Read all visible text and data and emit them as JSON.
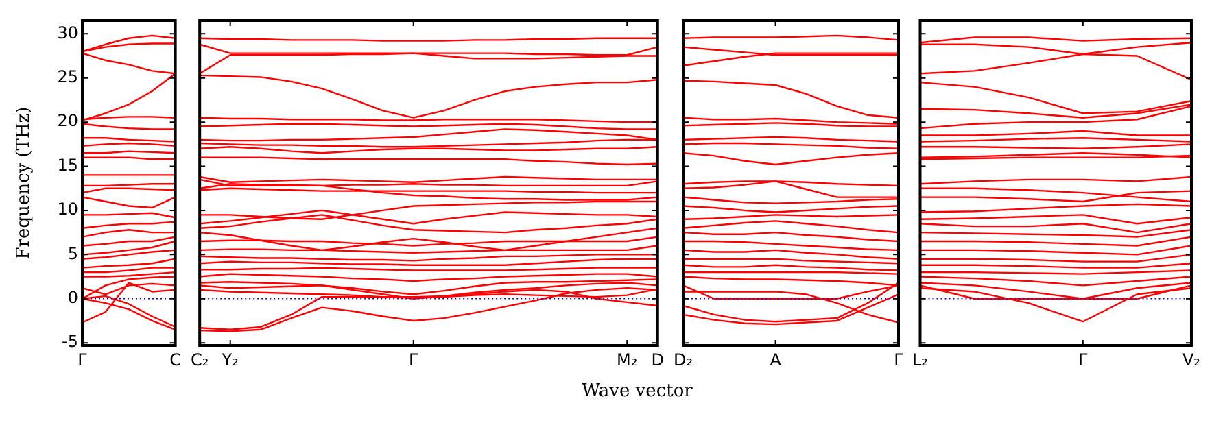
{
  "chart_data": [
    {
      "type": "line",
      "ylabel": "Frequency (THz)",
      "color": "#ff0000",
      "line_style": "solid",
      "marker": "none",
      "grid": false,
      "legend": false,
      "categories": [
        "Γ",
        null,
        null,
        null,
        "C"
      ],
      "ylim": [
        -5.3,
        31.5
      ],
      "yticks": [
        -5,
        0,
        5,
        10,
        15,
        20,
        25,
        30
      ],
      "ref_lines": [
        {
          "axis": "y",
          "value": 0,
          "color": "#0000ff",
          "line_style": "dotted"
        }
      ],
      "series": [
        {
          "values": [
            28,
            28.8,
            29.5,
            29.8,
            29.5
          ]
        },
        {
          "values": [
            28,
            28.5,
            28.8,
            28.9,
            28.9
          ]
        },
        {
          "values": [
            27.8,
            27,
            26.5,
            25.8,
            25.5
          ]
        },
        {
          "values": [
            20.2,
            21,
            22,
            23.5,
            25.5
          ]
        },
        {
          "values": [
            20.3,
            20.5,
            20.6,
            20.6,
            20.5
          ]
        },
        {
          "values": [
            19.8,
            19.5,
            19.3,
            19.2,
            19.2
          ]
        },
        {
          "values": [
            18.2,
            18.2,
            18,
            17.9,
            17.8
          ]
        },
        {
          "values": [
            17.3,
            17.5,
            17.6,
            17.5,
            17.3
          ]
        },
        {
          "values": [
            16.5,
            16.5,
            16.7,
            16.6,
            16.5
          ]
        },
        {
          "values": [
            16,
            16,
            16,
            15.8,
            15.8
          ]
        },
        {
          "values": [
            14,
            14,
            14,
            14,
            14
          ]
        },
        {
          "values": [
            12.8,
            12.8,
            12.9,
            13,
            13
          ]
        },
        {
          "values": [
            12,
            12.5,
            12.5,
            12.4,
            12.3
          ]
        },
        {
          "values": [
            11.5,
            11,
            10.5,
            10.3,
            11.5
          ]
        },
        {
          "values": [
            9.5,
            9.5,
            9.6,
            9.7,
            9.2
          ]
        },
        {
          "values": [
            8,
            8.3,
            8.5,
            8.5,
            8.7
          ]
        },
        {
          "values": [
            7,
            7.5,
            7.8,
            7.5,
            7.5
          ]
        },
        {
          "values": [
            6,
            6.2,
            6.5,
            6.5,
            7
          ]
        },
        {
          "values": [
            5,
            5.2,
            5.5,
            5.8,
            6.5
          ]
        },
        {
          "values": [
            4.5,
            4.7,
            5,
            5.3,
            5.5
          ]
        },
        {
          "values": [
            3.5,
            3.7,
            3.8,
            4,
            4.5
          ]
        },
        {
          "values": [
            3,
            3,
            3.2,
            3.5,
            3.5
          ]
        },
        {
          "values": [
            2.5,
            2.5,
            2.6,
            2.8,
            3
          ]
        },
        {
          "values": [
            0,
            1.5,
            2.2,
            2.4,
            2.5
          ]
        },
        {
          "values": [
            1.2,
            0.5,
            1.5,
            1.7,
            1.5
          ]
        },
        {
          "values": [
            0,
            -0.5,
            -1.2,
            -2.5,
            -3.5
          ]
        },
        {
          "values": [
            -2.7,
            -1.5,
            1.8,
            0.8,
            1
          ]
        },
        {
          "values": [
            0,
            0.3,
            -0.6,
            -2,
            -3.2
          ]
        }
      ]
    },
    {
      "type": "line",
      "xlabel": "Wave vector",
      "color": "#ff0000",
      "line_style": "solid",
      "marker": "none",
      "grid": false,
      "legend": false,
      "tick_labels": "x",
      "categories": [
        "C₂",
        "Y₂",
        null,
        null,
        null,
        null,
        null,
        "Γ",
        null,
        null,
        null,
        null,
        null,
        null,
        "M₂",
        "D"
      ],
      "ylim": [
        -5.3,
        31.5
      ],
      "ref_lines": [
        {
          "axis": "y",
          "value": 0,
          "color": "#0000ff",
          "line_style": "dotted"
        }
      ],
      "series": [
        {
          "values": [
            29.5,
            29.4,
            29.4,
            29.3,
            29.3,
            29.3,
            29.2,
            29.2,
            29.2,
            29.3,
            29.3,
            29.4,
            29.4,
            29.5,
            29.5,
            29.5
          ]
        },
        {
          "values": [
            28.8,
            27.8,
            27.8,
            27.8,
            27.8,
            27.8,
            27.8,
            27.8,
            27.8,
            27.8,
            27.8,
            27.7,
            27.7,
            27.6,
            27.6,
            28.5
          ]
        },
        {
          "values": [
            25.5,
            27.6,
            27.6,
            27.6,
            27.6,
            27.7,
            27.7,
            27.8,
            27.5,
            27.2,
            27.2,
            27.2,
            27.3,
            27.4,
            27.5,
            27.5
          ]
        },
        {
          "values": [
            25.3,
            25.2,
            25.1,
            24.6,
            23.8,
            22.6,
            21.3,
            20.5,
            21.3,
            22.5,
            23.5,
            24,
            24.3,
            24.5,
            24.5,
            24.8
          ]
        },
        {
          "values": [
            20.5,
            20.4,
            20.4,
            20.3,
            20.3,
            20.3,
            20.2,
            20.2,
            20.3,
            20.3,
            20.3,
            20.3,
            20.2,
            20.1,
            20,
            20
          ]
        },
        {
          "values": [
            19.5,
            19.6,
            19.7,
            19.8,
            19.8,
            19.7,
            19.6,
            19.5,
            19.6,
            19.7,
            19.8,
            19.7,
            19.5,
            19.3,
            19.2,
            19.2
          ]
        },
        {
          "values": [
            18,
            17.9,
            17.9,
            18,
            18,
            18.1,
            18.2,
            18.3,
            18.6,
            18.9,
            19.2,
            19.1,
            18.9,
            18.7,
            18.5,
            18
          ]
        },
        {
          "values": [
            17.6,
            17.5,
            17.4,
            17.4,
            17.3,
            17.3,
            17.2,
            17.2,
            17.3,
            17.4,
            17.5,
            17.6,
            17.7,
            17.9,
            18,
            18
          ]
        },
        {
          "values": [
            17,
            17.2,
            17,
            16.7,
            16.5,
            16.7,
            16.9,
            17,
            17,
            16.9,
            16.8,
            16.8,
            16.9,
            17,
            17,
            17.2
          ]
        },
        {
          "values": [
            16,
            16,
            16,
            15.9,
            15.8,
            15.8,
            15.8,
            15.8,
            15.8,
            15.8,
            15.8,
            15.6,
            15.5,
            15.3,
            15.2,
            15.3
          ]
        },
        {
          "values": [
            13.8,
            13.2,
            13.3,
            13.4,
            13.5,
            13.4,
            13.3,
            13.2,
            13.4,
            13.6,
            13.8,
            13.7,
            13.6,
            13.5,
            13.5,
            13.5
          ]
        },
        {
          "values": [
            12.5,
            13,
            12.9,
            12.9,
            12.8,
            12.9,
            12.9,
            13,
            12.9,
            12.9,
            12.8,
            12.8,
            12.8,
            12.8,
            12.8,
            13.3
          ]
        },
        {
          "values": [
            12.3,
            12.5,
            12.4,
            12.3,
            12.2,
            12.2,
            12.2,
            12.2,
            12.2,
            12.2,
            12.2,
            12.1,
            12.1,
            12,
            12,
            12
          ]
        },
        {
          "values": [
            13.5,
            12.8,
            12.8,
            12.8,
            12.8,
            12.4,
            12,
            11.7,
            11.6,
            11.4,
            11.3,
            11.3,
            11.2,
            11.2,
            11.2,
            11.5
          ]
        },
        {
          "values": [
            9.5,
            9.5,
            9.3,
            9.1,
            9,
            9.5,
            10,
            10.5,
            10.6,
            10.7,
            10.8,
            10.9,
            10.9,
            11,
            11,
            11
          ]
        },
        {
          "values": [
            8.5,
            8.8,
            9.2,
            9.6,
            10,
            9.5,
            9,
            8.5,
            9,
            9.4,
            9.8,
            9.7,
            9.6,
            9.5,
            9.5,
            9.3
          ]
        },
        {
          "values": [
            8,
            8.2,
            8.7,
            9.1,
            9.5,
            8.9,
            8.3,
            7.8,
            7.7,
            7.6,
            7.5,
            7.8,
            8,
            8.3,
            8.5,
            9
          ]
        },
        {
          "values": [
            7.5,
            7.2,
            6.6,
            6,
            5.5,
            5.9,
            6.4,
            6.8,
            6.4,
            5.9,
            5.5,
            6,
            6.5,
            7,
            7.5,
            8
          ]
        },
        {
          "values": [
            6.5,
            6.6,
            6.6,
            6.5,
            6.5,
            6.3,
            6.2,
            6,
            6.2,
            6.3,
            6.5,
            6.5,
            6.5,
            6.5,
            6.5,
            7
          ]
        },
        {
          "values": [
            5.5,
            5.6,
            5.6,
            5.5,
            5.5,
            5.4,
            5.3,
            5.2,
            5.3,
            5.4,
            5.5,
            5.5,
            5.5,
            5.5,
            5.5,
            6
          ]
        },
        {
          "values": [
            4.8,
            4.7,
            4.6,
            4.6,
            4.5,
            4.4,
            4.4,
            4.3,
            4.5,
            4.6,
            4.8,
            4.8,
            4.9,
            5,
            5,
            5
          ]
        },
        {
          "values": [
            4,
            4.2,
            4.1,
            4.1,
            4,
            3.9,
            3.9,
            3.8,
            3.8,
            3.8,
            3.8,
            4,
            4.2,
            4.4,
            4.5,
            4.5
          ]
        },
        {
          "values": [
            3.3,
            3.3,
            3.4,
            3.4,
            3.5,
            3.4,
            3.3,
            3.2,
            3.2,
            3.2,
            3.2,
            3.3,
            3.4,
            3.5,
            3.5,
            3.5
          ]
        },
        {
          "values": [
            2.5,
            2.8,
            2.7,
            2.6,
            2.5,
            2.3,
            2.2,
            2,
            2.2,
            2.3,
            2.5,
            2.6,
            2.7,
            2.8,
            2.8,
            2.5
          ]
        },
        {
          "values": [
            1.8,
            1.9,
            1.8,
            1.7,
            1.5,
            1.2,
            0.8,
            0.5,
            0.9,
            1.4,
            1.8,
            1.9,
            1.9,
            2,
            2.1,
            2.2
          ]
        },
        {
          "values": [
            1.5,
            1.2,
            1.3,
            1.4,
            1.5,
            1,
            0.5,
            0,
            0.3,
            0.7,
            1,
            1.2,
            1.5,
            1.7,
            1.8,
            1.5
          ]
        },
        {
          "values": [
            1,
            0.8,
            0.7,
            0.6,
            0.5,
            0.4,
            0.2,
            0.1,
            0.2,
            0.4,
            0.5,
            0.4,
            0.3,
            0.2,
            0.4,
            1.1
          ]
        },
        {
          "values": [
            -3.6,
            -3.7,
            -3.5,
            -2.2,
            -1,
            -1.4,
            -2,
            -2.5,
            -2.2,
            -1.6,
            -0.9,
            -0.2,
            0.6,
            1,
            1.2,
            1
          ]
        },
        {
          "values": [
            -3.3,
            -3.5,
            -3.2,
            -1.8,
            0.2,
            0.2,
            0.2,
            0.2,
            0.3,
            0.5,
            0.8,
            1,
            0.8,
            0,
            -0.4,
            -0.8
          ]
        }
      ]
    },
    {
      "type": "line",
      "color": "#ff0000",
      "line_style": "solid",
      "marker": "none",
      "grid": false,
      "legend": false,
      "tick_labels": "x",
      "categories": [
        "D₂",
        null,
        null,
        "A",
        null,
        null,
        null,
        "Γ"
      ],
      "ylim": [
        -5.3,
        31.5
      ],
      "ref_lines": [
        {
          "axis": "y",
          "value": 0,
          "color": "#0000ff",
          "line_style": "dotted"
        }
      ],
      "series": [
        {
          "values": [
            29.5,
            29.6,
            29.6,
            29.6,
            29.7,
            29.8,
            29.6,
            29.3
          ]
        },
        {
          "values": [
            28.5,
            28.2,
            27.9,
            27.6,
            27.6,
            27.6,
            27.6,
            27.6
          ]
        },
        {
          "values": [
            26.4,
            26.9,
            27.4,
            27.8,
            27.8,
            27.8,
            27.8,
            27.8
          ]
        },
        {
          "values": [
            24.7,
            24.6,
            24.4,
            24.2,
            23.2,
            21.8,
            20.8,
            20.5
          ]
        },
        {
          "values": [
            20.5,
            20.3,
            20.3,
            20.4,
            20.2,
            20,
            19.9,
            19.8
          ]
        },
        {
          "values": [
            19.6,
            19.7,
            19.8,
            19.9,
            19.8,
            19.6,
            19.5,
            19.5
          ]
        },
        {
          "values": [
            18,
            18.1,
            18.2,
            18.3,
            18.2,
            18,
            17.9,
            17.8
          ]
        },
        {
          "values": [
            17.5,
            17.6,
            17.6,
            17.5,
            17.4,
            17.3,
            17.1,
            17
          ]
        },
        {
          "values": [
            16.5,
            16.2,
            15.6,
            15.2,
            15.6,
            16,
            16.3,
            16.5
          ]
        },
        {
          "values": [
            13,
            13.2,
            13.3,
            13.3,
            13.2,
            13,
            12.9,
            12.8
          ]
        },
        {
          "values": [
            12.5,
            12.6,
            12.9,
            13.3,
            12.4,
            11.5,
            11.5,
            11.5
          ]
        },
        {
          "values": [
            11.5,
            11.2,
            10.9,
            10.8,
            10.9,
            11,
            11.2,
            11.3
          ]
        },
        {
          "values": [
            10.5,
            10.3,
            10,
            9.8,
            10,
            10.2,
            10.4,
            10.5
          ]
        },
        {
          "values": [
            9,
            9.1,
            9.3,
            9.5,
            9.4,
            9.3,
            9.4,
            9.5
          ]
        },
        {
          "values": [
            8,
            8.3,
            8.6,
            8.8,
            8.5,
            8.2,
            7.8,
            7.5
          ]
        },
        {
          "values": [
            7.5,
            7.3,
            7.3,
            7.5,
            7.2,
            7,
            6.7,
            6.5
          ]
        },
        {
          "values": [
            6.5,
            6.5,
            6.4,
            6.2,
            6,
            5.8,
            5.6,
            5.5
          ]
        },
        {
          "values": [
            5.5,
            5.3,
            5.3,
            5.5,
            5.2,
            5,
            4.7,
            4.5
          ]
        },
        {
          "values": [
            4.5,
            4.5,
            4.5,
            4.5,
            4.3,
            4.2,
            4.1,
            4
          ]
        },
        {
          "values": [
            3.8,
            3.6,
            3.6,
            3.8,
            3.6,
            3.5,
            3.3,
            3.2
          ]
        },
        {
          "values": [
            3,
            3,
            3,
            3,
            3,
            3,
            2.9,
            2.8
          ]
        },
        {
          "values": [
            2.5,
            2.3,
            2.2,
            2.2,
            2.1,
            2,
            1.8,
            1.5
          ]
        },
        {
          "values": [
            1.5,
            0,
            0,
            0,
            0,
            0,
            0.8,
            1.5
          ]
        },
        {
          "values": [
            -0.8,
            -1.8,
            -2.4,
            -2.6,
            -2.4,
            -2.2,
            -0.5,
            1.8
          ]
        },
        {
          "values": [
            -1.8,
            -2.4,
            -2.8,
            -2.9,
            -2.7,
            -2.5,
            -1,
            0.5
          ]
        },
        {
          "values": [
            0.8,
            0.8,
            0.8,
            0.8,
            0.5,
            -0.5,
            -1.8,
            -2.7
          ]
        }
      ]
    },
    {
      "type": "line",
      "color": "#ff0000",
      "line_style": "solid",
      "marker": "none",
      "grid": false,
      "legend": false,
      "tick_labels": "x",
      "categories": [
        "L₂",
        null,
        null,
        "Γ",
        null,
        "V₂"
      ],
      "ylim": [
        -5.3,
        31.5
      ],
      "ref_lines": [
        {
          "axis": "y",
          "value": 0,
          "color": "#0000ff",
          "line_style": "dotted"
        }
      ],
      "series": [
        {
          "values": [
            29,
            29.6,
            29.6,
            29.2,
            29.4,
            29.5
          ]
        },
        {
          "values": [
            28.8,
            28.8,
            28.5,
            27.7,
            27.5,
            24.8
          ]
        },
        {
          "values": [
            25.5,
            25.8,
            26.7,
            27.7,
            28.5,
            29
          ]
        },
        {
          "values": [
            24.5,
            24,
            22.8,
            21,
            21.2,
            22.4
          ]
        },
        {
          "values": [
            21.5,
            21.4,
            21,
            20.5,
            21,
            22
          ]
        },
        {
          "values": [
            19.3,
            19.8,
            20,
            20,
            20.3,
            21.8
          ]
        },
        {
          "values": [
            18.5,
            18.5,
            18.7,
            19,
            18.5,
            18.5
          ]
        },
        {
          "values": [
            17.8,
            17.9,
            18.1,
            18.2,
            18,
            17.8
          ]
        },
        {
          "values": [
            17.2,
            17.2,
            17.1,
            17,
            17.2,
            17.5
          ]
        },
        {
          "values": [
            16,
            16.1,
            16.3,
            16.5,
            16.3,
            16
          ]
        },
        {
          "values": [
            15.8,
            15.9,
            16,
            16,
            16,
            16.2
          ]
        },
        {
          "values": [
            13,
            13.3,
            13.5,
            13.5,
            13.3,
            13.8
          ]
        },
        {
          "values": [
            12.5,
            12.5,
            12.3,
            12,
            11.5,
            11
          ]
        },
        {
          "values": [
            11.5,
            11.5,
            11.3,
            11,
            12,
            12.2
          ]
        },
        {
          "values": [
            9.8,
            9.9,
            10.2,
            10.5,
            10.7,
            10.5
          ]
        },
        {
          "values": [
            9,
            9.1,
            9.3,
            9.5,
            8.5,
            9.2
          ]
        },
        {
          "values": [
            8.5,
            8.2,
            8.2,
            8.5,
            7.5,
            8.5
          ]
        },
        {
          "values": [
            7.5,
            7.4,
            7.3,
            7.2,
            7,
            7.8
          ]
        },
        {
          "values": [
            6.5,
            6.5,
            6.4,
            6.2,
            6,
            7
          ]
        },
        {
          "values": [
            5.5,
            5.5,
            5.4,
            5.2,
            5,
            6
          ]
        },
        {
          "values": [
            4.5,
            4.5,
            4.4,
            4.2,
            4.2,
            5
          ]
        },
        {
          "values": [
            3.8,
            3.8,
            3.7,
            3.5,
            3.5,
            4
          ]
        },
        {
          "values": [
            3,
            3,
            2.9,
            2.8,
            3,
            3.2
          ]
        },
        {
          "values": [
            2.5,
            2.3,
            2,
            1.5,
            2,
            2.5
          ]
        },
        {
          "values": [
            1.5,
            0,
            0,
            0,
            0,
            1.5
          ]
        },
        {
          "values": [
            1.2,
            0.8,
            -0.5,
            -2.6,
            0.5,
            1.2
          ]
        },
        {
          "values": [
            1.8,
            1.5,
            0.8,
            0,
            1.2,
            1.8
          ]
        }
      ]
    }
  ]
}
